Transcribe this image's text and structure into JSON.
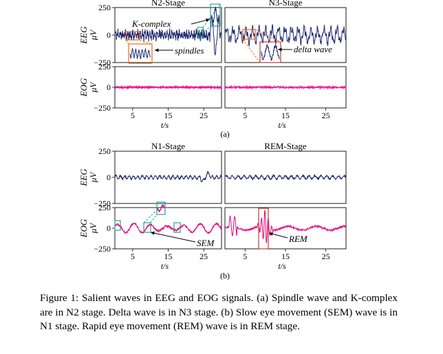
{
  "figure": {
    "panel_labels": [
      "(a)",
      "(b)"
    ],
    "axis": {
      "y_name_eeg": "EEG",
      "y_name_eog": "EOG",
      "y_unit": "μV",
      "x_label": "t/s",
      "x_ticks": [
        5,
        15,
        25
      ],
      "y_ticks": [
        250,
        0,
        -250
      ],
      "y_tick_labels": [
        "250",
        "0",
        "−250"
      ]
    }
  },
  "chart_data": [
    {
      "type": "line",
      "title": "N2-Stage",
      "ylabel": "EEG μV",
      "xlabel": "t/s",
      "xlim": [
        0,
        30
      ],
      "ylim": [
        -250,
        250
      ],
      "series": [
        {
          "color": "#1f2a6e",
          "amplitude": 45,
          "noise": 22
        }
      ],
      "annotations": [
        "K-complex",
        "spindles"
      ]
    },
    {
      "type": "line",
      "title": "N3-Stage",
      "ylabel": "EEG μV",
      "xlabel": "t/s",
      "xlim": [
        0,
        30
      ],
      "ylim": [
        -250,
        250
      ],
      "series": [
        {
          "color": "#1f2a6e",
          "amplitude": 55,
          "noise": 25
        }
      ],
      "annotations": [
        "delta wave"
      ]
    },
    {
      "type": "line",
      "title": "N2-Stage",
      "ylabel": "EOG μV",
      "xlabel": "t/s",
      "xlim": [
        0,
        30
      ],
      "ylim": [
        -250,
        250
      ],
      "series": [
        {
          "color": "#e6007e",
          "amplitude": 10,
          "noise": 8
        }
      ]
    },
    {
      "type": "line",
      "title": "N3-Stage",
      "ylabel": "EOG μV",
      "xlabel": "t/s",
      "xlim": [
        0,
        30
      ],
      "ylim": [
        -250,
        250
      ],
      "series": [
        {
          "color": "#e6007e",
          "amplitude": 10,
          "noise": 8
        }
      ]
    },
    {
      "type": "line",
      "title": "N1-Stage",
      "ylabel": "EEG μV",
      "xlabel": "t/s",
      "xlim": [
        0,
        30
      ],
      "ylim": [
        -250,
        250
      ],
      "series": [
        {
          "color": "#1f2a6e",
          "amplitude": 15,
          "noise": 8
        }
      ]
    },
    {
      "type": "line",
      "title": "REM-Stage",
      "ylabel": "EEG μV",
      "xlabel": "t/s",
      "xlim": [
        0,
        30
      ],
      "ylim": [
        -250,
        250
      ],
      "series": [
        {
          "color": "#1f2a6e",
          "amplitude": 15,
          "noise": 8
        }
      ]
    },
    {
      "type": "line",
      "title": "N1-Stage",
      "ylabel": "EOG μV",
      "xlabel": "t/s",
      "xlim": [
        0,
        30
      ],
      "ylim": [
        -250,
        250
      ],
      "series": [
        {
          "color": "#e6007e",
          "amplitude": 60,
          "noise": 12
        }
      ],
      "annotations": [
        "SEM"
      ]
    },
    {
      "type": "line",
      "title": "REM-Stage",
      "ylabel": "EOG μV",
      "xlabel": "t/s",
      "xlim": [
        0,
        30
      ],
      "ylim": [
        -250,
        250
      ],
      "series": [
        {
          "color": "#e6007e",
          "amplitude": 40,
          "noise": 12
        }
      ],
      "annotations": [
        "REM"
      ]
    }
  ],
  "caption": "Figure 1: Salient waves in EEG and EOG signals. (a) Spindle wave and K-complex are in N2 stage. Delta wave is in N3 stage. (b) Slow eye movement (SEM) wave is in N1 stage. Rapid eye movement (REM) wave is in REM stage."
}
